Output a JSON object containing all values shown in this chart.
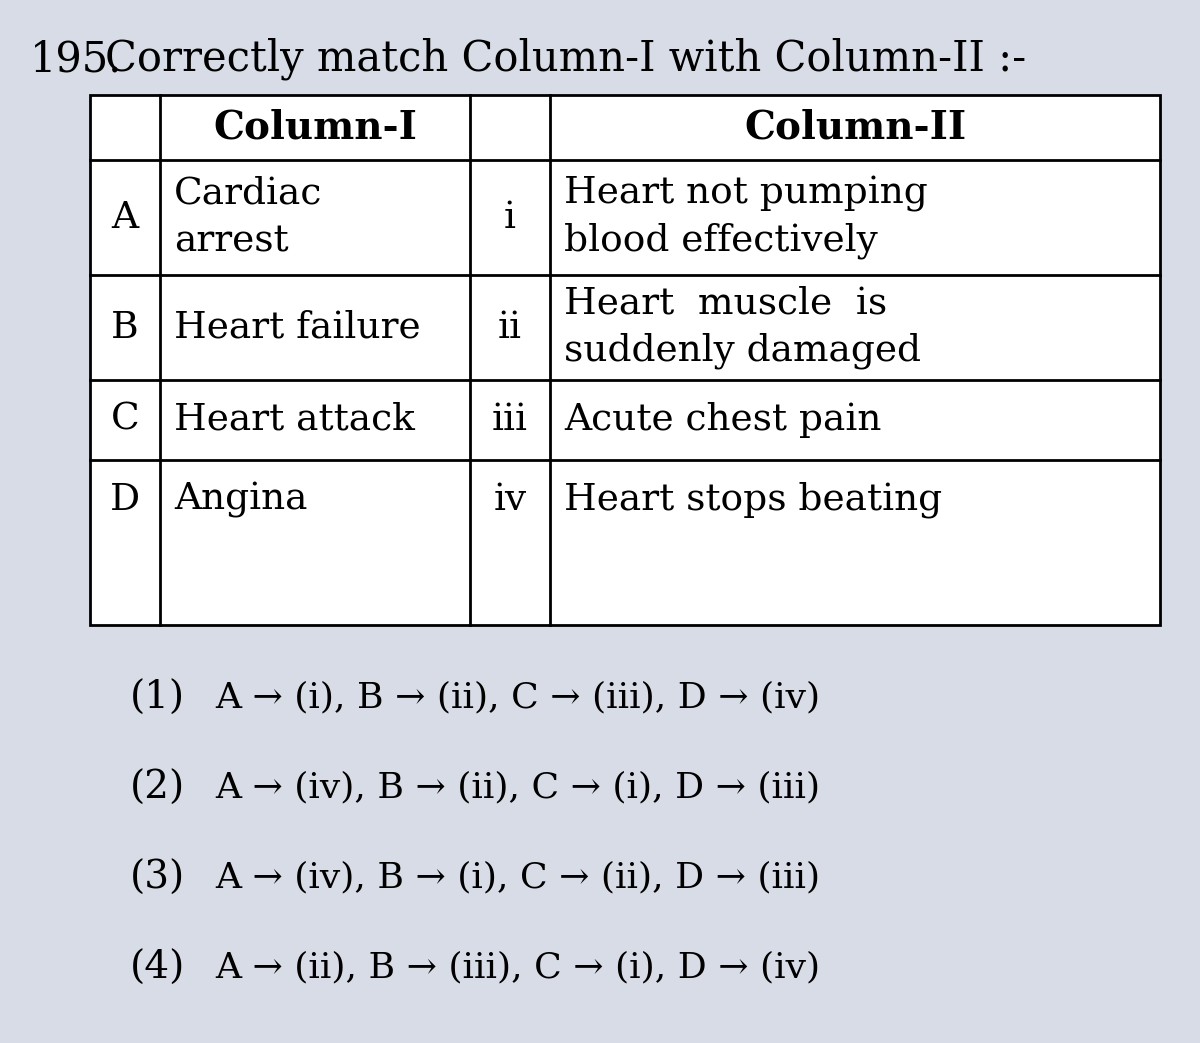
{
  "question_number": "195.",
  "question_text": "Correctly match Column-I with Column-II :-",
  "background_color": "#d8dce6",
  "table": {
    "col1_header": "Column-I",
    "col2_header": "Column-II",
    "rows": [
      {
        "left_label": "A",
        "left_text": "Cardiac\narrest",
        "right_label": "i",
        "right_text": "Heart not pumping\nblood effectively"
      },
      {
        "left_label": "B",
        "left_text": "Heart failure",
        "right_label": "ii",
        "right_text": "Heart  muscle  is\nsuddenly damaged"
      },
      {
        "left_label": "C",
        "left_text": "Heart attack",
        "right_label": "iii",
        "right_text": "Acute chest pain"
      },
      {
        "left_label": "D",
        "left_text": "Angina",
        "right_label": "iv",
        "right_text": "Heart stops beating"
      }
    ]
  },
  "options": [
    {
      "num": "(1)",
      "text": "A → (i), B → (ii), C → (iii), D → (iv)"
    },
    {
      "num": "(2)",
      "text": "A → (iv), B → (ii), C → (i), D → (iii)"
    },
    {
      "num": "(3)",
      "text": "A → (iv), B → (i), C → (ii), D → (iii)"
    },
    {
      "num": "(4)",
      "text": "A → (ii), B → (iii), C → (i), D → (iv)"
    }
  ],
  "font_size_question": 30,
  "font_size_table_header": 28,
  "font_size_table_body": 27,
  "font_size_options_num": 28,
  "font_size_options_text": 26,
  "table_line_color": "#000000",
  "text_color": "#000000"
}
